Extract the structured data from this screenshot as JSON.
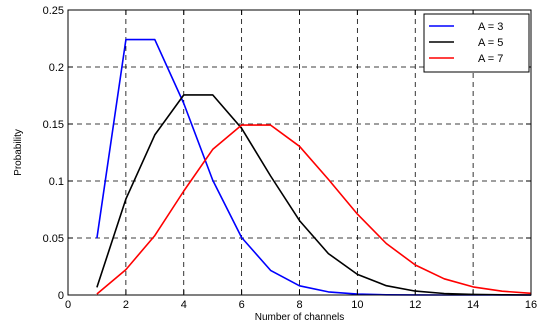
{
  "chart_data": {
    "type": "line",
    "title": "",
    "xlabel": "Number of channels",
    "ylabel": "Probability",
    "xlim": [
      0,
      16
    ],
    "ylim": [
      0,
      0.25
    ],
    "xticks": [
      0,
      2,
      4,
      6,
      8,
      10,
      12,
      14,
      16
    ],
    "xtick_labels": [
      "0",
      "2",
      "4",
      "6",
      "8",
      "10",
      "12",
      "14",
      "16"
    ],
    "yticks": [
      0,
      0.05,
      0.1,
      0.15,
      0.2,
      0.25
    ],
    "ytick_labels": [
      "0",
      "0.05",
      "0.1",
      "0.15",
      "0.2",
      "0.25"
    ],
    "grid": true,
    "legend_position": "top-right",
    "series": [
      {
        "name": "A = 3",
        "color": "#0000ff",
        "x": [
          1,
          2,
          3,
          4,
          5,
          6,
          7,
          8,
          9,
          10,
          11,
          12,
          13,
          14,
          15,
          16
        ],
        "y": [
          0.0498,
          0.224,
          0.224,
          0.168,
          0.1008,
          0.0504,
          0.0216,
          0.0081,
          0.0027,
          0.0008,
          0.0002,
          0.0001,
          0,
          0,
          0,
          0
        ]
      },
      {
        "name": "A = 5",
        "color": "#000000",
        "x": [
          1,
          2,
          3,
          4,
          5,
          6,
          7,
          8,
          9,
          10,
          11,
          12,
          13,
          14,
          15,
          16
        ],
        "y": [
          0.0067,
          0.0842,
          0.1404,
          0.1755,
          0.1755,
          0.1462,
          0.1044,
          0.0653,
          0.0363,
          0.0181,
          0.0082,
          0.0034,
          0.0013,
          0.0005,
          0.0002,
          0
        ]
      },
      {
        "name": "A = 7",
        "color": "#ff0000",
        "x": [
          1,
          2,
          3,
          4,
          5,
          6,
          7,
          8,
          9,
          10,
          11,
          12,
          13,
          14,
          15,
          16
        ],
        "y": [
          0.0009,
          0.0223,
          0.0521,
          0.0912,
          0.1277,
          0.149,
          0.149,
          0.1304,
          0.1014,
          0.071,
          0.0452,
          0.0263,
          0.0142,
          0.0071,
          0.0033,
          0.0015
        ]
      }
    ]
  }
}
